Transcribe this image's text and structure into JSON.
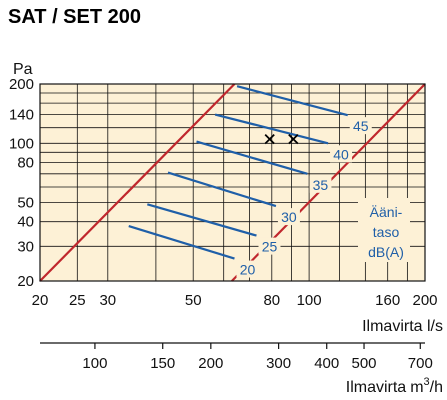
{
  "chart_data": {
    "type": "line",
    "title": "SAT / SET 200",
    "scale": "log-log",
    "grid": true,
    "xlabel": "Ilmavirta l/s",
    "xlabel2": "Ilmavirta",
    "xlabel2_unit": "m",
    "xlabel2_sup": "3",
    "xlabel2_suffix": "/h",
    "ylabel": "Pa",
    "xlim": [
      20,
      200
    ],
    "ylim": [
      20,
      200
    ],
    "x_ticks": [
      "20",
      "25",
      "30",
      "50",
      "80",
      "100",
      "160",
      "200"
    ],
    "x_tick_values": [
      20,
      25,
      30,
      50,
      80,
      100,
      160,
      200
    ],
    "x2_ticks": [
      "100",
      "150",
      "200",
      "300",
      "400",
      "500",
      "700"
    ],
    "x2_tick_values_m3h": [
      100,
      150,
      200,
      300,
      400,
      500,
      700
    ],
    "y_ticks": [
      "20",
      "30",
      "40",
      "50",
      "80",
      "100",
      "140",
      "200"
    ],
    "y_tick_values": [
      20,
      30,
      40,
      50,
      80,
      100,
      140,
      200
    ],
    "limit_lines": [
      {
        "x": [
          20,
          64
        ],
        "y": [
          20,
          200
        ],
        "color": "#c0272d"
      },
      {
        "x": [
          63,
          200
        ],
        "y": [
          20,
          200
        ],
        "color": "#c0272d"
      }
    ],
    "series": [
      {
        "name": "20",
        "x": [
          34,
          64
        ],
        "y": [
          38,
          26
        ],
        "color": "#1f5fa8"
      },
      {
        "name": "25",
        "x": [
          38,
          73
        ],
        "y": [
          49,
          34
        ],
        "color": "#1f5fa8"
      },
      {
        "name": "30",
        "x": [
          43,
          82
        ],
        "y": [
          71,
          48
        ],
        "color": "#1f5fa8"
      },
      {
        "name": "35",
        "x": [
          51,
          99
        ],
        "y": [
          102,
          70
        ],
        "color": "#1f5fa8"
      },
      {
        "name": "40",
        "x": [
          57,
          112
        ],
        "y": [
          140,
          100
        ],
        "color": "#1f5fa8"
      },
      {
        "name": "45",
        "x": [
          65,
          126
        ],
        "y": [
          195,
          139
        ],
        "color": "#1f5fa8"
      }
    ],
    "markers": [
      {
        "x": 79,
        "y": 105,
        "symbol": "x"
      },
      {
        "x": 91,
        "y": 105,
        "symbol": "x"
      }
    ],
    "legend_title": [
      "Ääni-",
      "taso",
      "dB(A)"
    ],
    "colors": {
      "plot_background": "#fdf1d6",
      "grid": "#111111",
      "limit_line": "#c0272d",
      "noise_line": "#1f5fa8"
    }
  }
}
